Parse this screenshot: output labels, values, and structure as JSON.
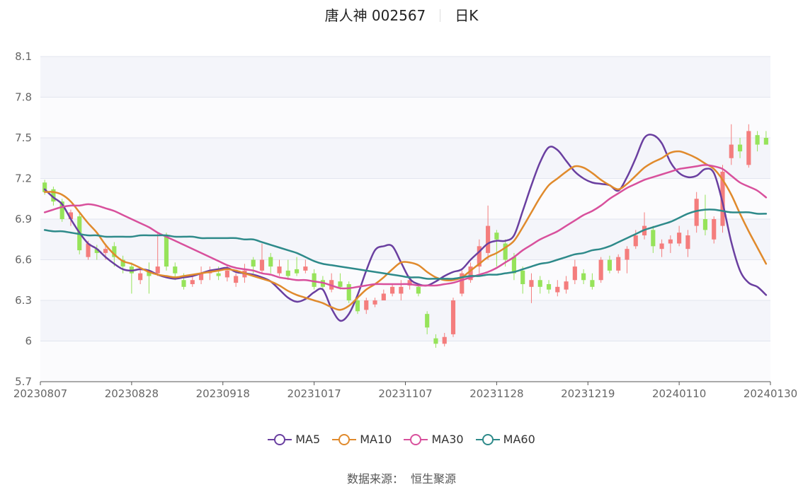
{
  "header": {
    "stock": "唐人神 002567",
    "period": "日K"
  },
  "source": {
    "label": "数据来源：",
    "name": "恒生聚源"
  },
  "legend": [
    {
      "label": "MA5",
      "color": "#6a3fa0"
    },
    {
      "label": "MA10",
      "color": "#e08a2c"
    },
    {
      "label": "MA30",
      "color": "#d8509c"
    },
    {
      "label": "MA60",
      "color": "#2e8a8a"
    }
  ],
  "chart_data": {
    "type": "candlestick",
    "ylim": [
      5.7,
      8.1
    ],
    "yticks": [
      "8.1",
      "7.8",
      "7.5",
      "7.2",
      "6.9",
      "6.6",
      "6.3",
      "6",
      "5.7"
    ],
    "xticks": [
      "20230807",
      "20230828",
      "20230918",
      "20231017",
      "20231107",
      "20231128",
      "20231219",
      "20240110",
      "20240130"
    ],
    "up_color": "#f47d7d",
    "down_color": "#96e35a",
    "grid": true,
    "series": [
      {
        "name": "MA5",
        "color": "#6a3fa0",
        "values": [
          7.12,
          7.06,
          7.01,
          6.9,
          6.8,
          6.72,
          6.68,
          6.62,
          6.57,
          6.53,
          6.52,
          6.53,
          6.52,
          6.49,
          6.47,
          6.46,
          6.47,
          6.48,
          6.5,
          6.52,
          6.53,
          6.54,
          6.51,
          6.5,
          6.49,
          6.47,
          6.44,
          6.38,
          6.32,
          6.29,
          6.31,
          6.36,
          6.38,
          6.24,
          6.15,
          6.2,
          6.34,
          6.52,
          6.67,
          6.7,
          6.7,
          6.58,
          6.46,
          6.42,
          6.41,
          6.44,
          6.48,
          6.51,
          6.53,
          6.6,
          6.66,
          6.72,
          6.74,
          6.74,
          6.78,
          6.96,
          7.15,
          7.32,
          7.43,
          7.41,
          7.33,
          7.25,
          7.2,
          7.17,
          7.16,
          7.15,
          7.11,
          7.21,
          7.35,
          7.5,
          7.52,
          7.46,
          7.32,
          7.24,
          7.21,
          7.22,
          7.27,
          7.24,
          7.02,
          6.73,
          6.52,
          6.43,
          6.4,
          6.34
        ]
      },
      {
        "name": "MA10",
        "color": "#e08a2c",
        "values": [
          7.1,
          7.1,
          7.08,
          7.03,
          6.95,
          6.87,
          6.8,
          6.71,
          6.64,
          6.59,
          6.57,
          6.54,
          6.51,
          6.49,
          6.48,
          6.47,
          6.48,
          6.49,
          6.5,
          6.51,
          6.52,
          6.53,
          6.52,
          6.5,
          6.48,
          6.46,
          6.44,
          6.41,
          6.37,
          6.34,
          6.32,
          6.3,
          6.28,
          6.25,
          6.23,
          6.26,
          6.32,
          6.38,
          6.42,
          6.47,
          6.53,
          6.58,
          6.58,
          6.56,
          6.51,
          6.47,
          6.45,
          6.45,
          6.47,
          6.52,
          6.57,
          6.62,
          6.65,
          6.69,
          6.74,
          6.84,
          6.95,
          7.06,
          7.15,
          7.2,
          7.25,
          7.29,
          7.28,
          7.24,
          7.19,
          7.15,
          7.12,
          7.16,
          7.22,
          7.28,
          7.32,
          7.35,
          7.39,
          7.4,
          7.38,
          7.35,
          7.31,
          7.27,
          7.19,
          7.08,
          6.94,
          6.81,
          6.69,
          6.57
        ]
      },
      {
        "name": "MA30",
        "color": "#d8509c",
        "values": [
          6.95,
          6.97,
          6.99,
          7.0,
          7.0,
          7.01,
          7.0,
          6.98,
          6.96,
          6.93,
          6.9,
          6.87,
          6.84,
          6.8,
          6.77,
          6.74,
          6.71,
          6.68,
          6.65,
          6.62,
          6.59,
          6.56,
          6.54,
          6.53,
          6.52,
          6.5,
          6.49,
          6.47,
          6.46,
          6.45,
          6.45,
          6.44,
          6.43,
          6.41,
          6.39,
          6.39,
          6.4,
          6.41,
          6.42,
          6.42,
          6.42,
          6.42,
          6.42,
          6.41,
          6.41,
          6.41,
          6.42,
          6.43,
          6.45,
          6.47,
          6.49,
          6.51,
          6.54,
          6.58,
          6.62,
          6.67,
          6.71,
          6.75,
          6.78,
          6.81,
          6.85,
          6.89,
          6.93,
          6.96,
          7.0,
          7.05,
          7.09,
          7.13,
          7.16,
          7.19,
          7.21,
          7.23,
          7.25,
          7.27,
          7.28,
          7.29,
          7.3,
          7.29,
          7.27,
          7.22,
          7.17,
          7.14,
          7.11,
          7.06
        ]
      },
      {
        "name": "MA60",
        "color": "#2e8a8a",
        "values": [
          6.82,
          6.81,
          6.81,
          6.8,
          6.79,
          6.78,
          6.78,
          6.77,
          6.77,
          6.77,
          6.77,
          6.78,
          6.78,
          6.78,
          6.78,
          6.77,
          6.77,
          6.77,
          6.76,
          6.76,
          6.76,
          6.76,
          6.76,
          6.75,
          6.75,
          6.73,
          6.71,
          6.69,
          6.67,
          6.65,
          6.62,
          6.59,
          6.57,
          6.56,
          6.55,
          6.54,
          6.53,
          6.52,
          6.51,
          6.5,
          6.49,
          6.48,
          6.47,
          6.47,
          6.46,
          6.46,
          6.46,
          6.46,
          6.47,
          6.48,
          6.48,
          6.49,
          6.49,
          6.5,
          6.51,
          6.53,
          6.55,
          6.57,
          6.58,
          6.6,
          6.62,
          6.64,
          6.65,
          6.67,
          6.68,
          6.7,
          6.73,
          6.76,
          6.79,
          6.82,
          6.84,
          6.86,
          6.88,
          6.91,
          6.94,
          6.96,
          6.97,
          6.97,
          6.96,
          6.95,
          6.95,
          6.95,
          6.94,
          6.94
        ]
      }
    ],
    "candles": [
      [
        7.17,
        7.1,
        7.19,
        7.08
      ],
      [
        7.12,
        7.03,
        7.14,
        7.0
      ],
      [
        7.03,
        6.9,
        7.05,
        6.88
      ],
      [
        6.9,
        6.95,
        6.97,
        6.85
      ],
      [
        6.92,
        6.67,
        6.94,
        6.64
      ],
      [
        6.62,
        6.72,
        6.74,
        6.6
      ],
      [
        6.68,
        6.65,
        6.71,
        6.6
      ],
      [
        6.65,
        6.68,
        6.72,
        6.6
      ],
      [
        6.7,
        6.62,
        6.73,
        6.55
      ],
      [
        6.6,
        6.55,
        6.63,
        6.5
      ],
      [
        6.55,
        6.5,
        6.58,
        6.35
      ],
      [
        6.45,
        6.5,
        6.53,
        6.42
      ],
      [
        6.52,
        6.48,
        6.58,
        6.35
      ],
      [
        6.5,
        6.55,
        6.8,
        6.48
      ],
      [
        6.78,
        6.55,
        6.8,
        6.52
      ],
      [
        6.55,
        6.5,
        6.58,
        6.45
      ],
      [
        6.45,
        6.4,
        6.5,
        6.38
      ],
      [
        6.42,
        6.45,
        6.48,
        6.4
      ],
      [
        6.45,
        6.5,
        6.55,
        6.42
      ],
      [
        6.5,
        6.52,
        6.55,
        6.45
      ],
      [
        6.5,
        6.48,
        6.55,
        6.45
      ],
      [
        6.47,
        6.52,
        6.56,
        6.44
      ],
      [
        6.43,
        6.48,
        6.5,
        6.4
      ],
      [
        6.47,
        6.52,
        6.57,
        6.43
      ],
      [
        6.6,
        6.55,
        6.62,
        6.5
      ],
      [
        6.52,
        6.6,
        6.72,
        6.5
      ],
      [
        6.62,
        6.55,
        6.65,
        6.5
      ],
      [
        6.5,
        6.55,
        6.6,
        6.48
      ],
      [
        6.52,
        6.48,
        6.6,
        6.45
      ],
      [
        6.53,
        6.5,
        6.62,
        6.48
      ],
      [
        6.52,
        6.55,
        6.6,
        6.5
      ],
      [
        6.5,
        6.4,
        6.53,
        6.38
      ],
      [
        6.45,
        6.4,
        6.48,
        6.38
      ],
      [
        6.38,
        6.45,
        6.5,
        6.36
      ],
      [
        6.44,
        6.4,
        6.5,
        6.38
      ],
      [
        6.42,
        6.3,
        6.44,
        6.28
      ],
      [
        6.3,
        6.22,
        6.32,
        6.2
      ],
      [
        6.23,
        6.3,
        6.32,
        6.2
      ],
      [
        6.27,
        6.3,
        6.32,
        6.25
      ],
      [
        6.3,
        6.35,
        6.38,
        6.3
      ],
      [
        6.35,
        6.4,
        6.42,
        6.33
      ],
      [
        6.35,
        6.4,
        6.45,
        6.3
      ],
      [
        6.41,
        6.45,
        6.48,
        6.38
      ],
      [
        6.4,
        6.35,
        6.42,
        6.33
      ],
      [
        6.2,
        6.1,
        6.22,
        6.05
      ],
      [
        6.02,
        5.98,
        6.05,
        5.95
      ],
      [
        5.98,
        6.03,
        6.06,
        5.96
      ],
      [
        6.05,
        6.3,
        6.32,
        6.03
      ],
      [
        6.35,
        6.5,
        6.52,
        6.33
      ],
      [
        6.45,
        6.55,
        6.58,
        6.43
      ],
      [
        6.55,
        6.7,
        6.75,
        6.5
      ],
      [
        6.65,
        6.85,
        7.0,
        6.6
      ],
      [
        6.8,
        6.75,
        6.82,
        6.55
      ],
      [
        6.72,
        6.6,
        6.75,
        6.55
      ],
      [
        6.62,
        6.5,
        6.65,
        6.45
      ],
      [
        6.52,
        6.42,
        6.55,
        6.35
      ],
      [
        6.4,
        6.45,
        6.5,
        6.28
      ],
      [
        6.45,
        6.4,
        6.48,
        6.35
      ],
      [
        6.42,
        6.38,
        6.45,
        6.35
      ],
      [
        6.36,
        6.4,
        6.45,
        6.33
      ],
      [
        6.38,
        6.44,
        6.48,
        6.35
      ],
      [
        6.45,
        6.55,
        6.6,
        6.42
      ],
      [
        6.5,
        6.45,
        6.53,
        6.42
      ],
      [
        6.45,
        6.4,
        6.5,
        6.38
      ],
      [
        6.45,
        6.6,
        6.62,
        6.43
      ],
      [
        6.6,
        6.52,
        6.63,
        6.5
      ],
      [
        6.52,
        6.62,
        6.64,
        6.5
      ],
      [
        6.6,
        6.68,
        6.7,
        6.5
      ],
      [
        6.7,
        6.78,
        6.82,
        6.68
      ],
      [
        6.78,
        6.85,
        6.95,
        6.75
      ],
      [
        6.82,
        6.7,
        6.85,
        6.65
      ],
      [
        6.68,
        6.72,
        6.75,
        6.62
      ],
      [
        6.72,
        6.75,
        6.78,
        6.65
      ],
      [
        6.72,
        6.8,
        6.85,
        6.7
      ],
      [
        6.68,
        6.78,
        6.82,
        6.62
      ],
      [
        6.85,
        7.05,
        7.1,
        6.8
      ],
      [
        6.9,
        6.82,
        7.08,
        6.78
      ],
      [
        6.75,
        6.9,
        6.92,
        6.72
      ],
      [
        6.85,
        7.25,
        7.3,
        6.8
      ],
      [
        7.35,
        7.45,
        7.6,
        7.3
      ],
      [
        7.45,
        7.4,
        7.5,
        7.35
      ],
      [
        7.3,
        7.55,
        7.6,
        7.28
      ],
      [
        7.52,
        7.45,
        7.55,
        7.4
      ],
      [
        7.5,
        7.45,
        7.55,
        7.45
      ]
    ]
  }
}
